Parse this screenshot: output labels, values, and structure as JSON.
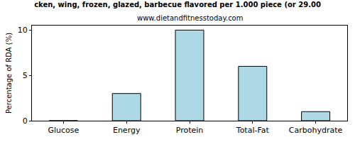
{
  "chart_data": {
    "type": "bar",
    "title": "cken, wing, frozen, glazed, barbecue flavored per 1.000 piece (or 29.00",
    "subtitle": "www.dietandfitnesstoday.com",
    "y_label": "Percentage of RDA (%)",
    "categories": [
      "Glucose",
      "Energy",
      "Protein",
      "Total-Fat",
      "Carbohydrate"
    ],
    "values": [
      0,
      3,
      10,
      6,
      1
    ],
    "color": "#add8e6",
    "ylim": [
      0,
      10.5
    ],
    "yticks": [
      0,
      5,
      10
    ],
    "grid": false
  }
}
